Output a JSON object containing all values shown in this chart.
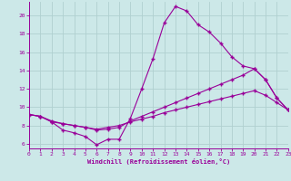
{
  "x": [
    0,
    1,
    2,
    3,
    4,
    5,
    6,
    7,
    8,
    9,
    10,
    11,
    12,
    13,
    14,
    15,
    16,
    17,
    18,
    19,
    20,
    21,
    22,
    23
  ],
  "line1": [
    9.2,
    9.0,
    8.4,
    7.5,
    7.2,
    6.8,
    5.9,
    6.5,
    6.5,
    8.8,
    12.0,
    15.3,
    19.2,
    21.0,
    20.5,
    19.0,
    18.2,
    17.0,
    15.5,
    14.5,
    14.2,
    13.0,
    11.0,
    9.7
  ],
  "line2": [
    9.2,
    9.0,
    8.4,
    8.2,
    8.0,
    7.8,
    7.5,
    7.6,
    7.8,
    8.5,
    9.0,
    9.5,
    10.0,
    10.5,
    11.0,
    11.5,
    12.0,
    12.5,
    13.0,
    13.5,
    14.2,
    13.0,
    11.0,
    9.7
  ],
  "line3": [
    9.2,
    9.0,
    8.5,
    8.2,
    8.0,
    7.8,
    7.6,
    7.8,
    8.0,
    8.4,
    8.7,
    9.0,
    9.4,
    9.7,
    10.0,
    10.3,
    10.6,
    10.9,
    11.2,
    11.5,
    11.8,
    11.3,
    10.5,
    9.7
  ],
  "line_color": "#990099",
  "bg_color": "#cce8e8",
  "grid_color": "#b0d0d0",
  "xlabel": "Windchill (Refroidissement éolien,°C)",
  "xlim": [
    0,
    23
  ],
  "ylim": [
    5.5,
    21.5
  ],
  "yticks": [
    6,
    8,
    10,
    12,
    14,
    16,
    18,
    20
  ],
  "xticks": [
    0,
    1,
    2,
    3,
    4,
    5,
    6,
    7,
    8,
    9,
    10,
    11,
    12,
    13,
    14,
    15,
    16,
    17,
    18,
    19,
    20,
    21,
    22,
    23
  ]
}
